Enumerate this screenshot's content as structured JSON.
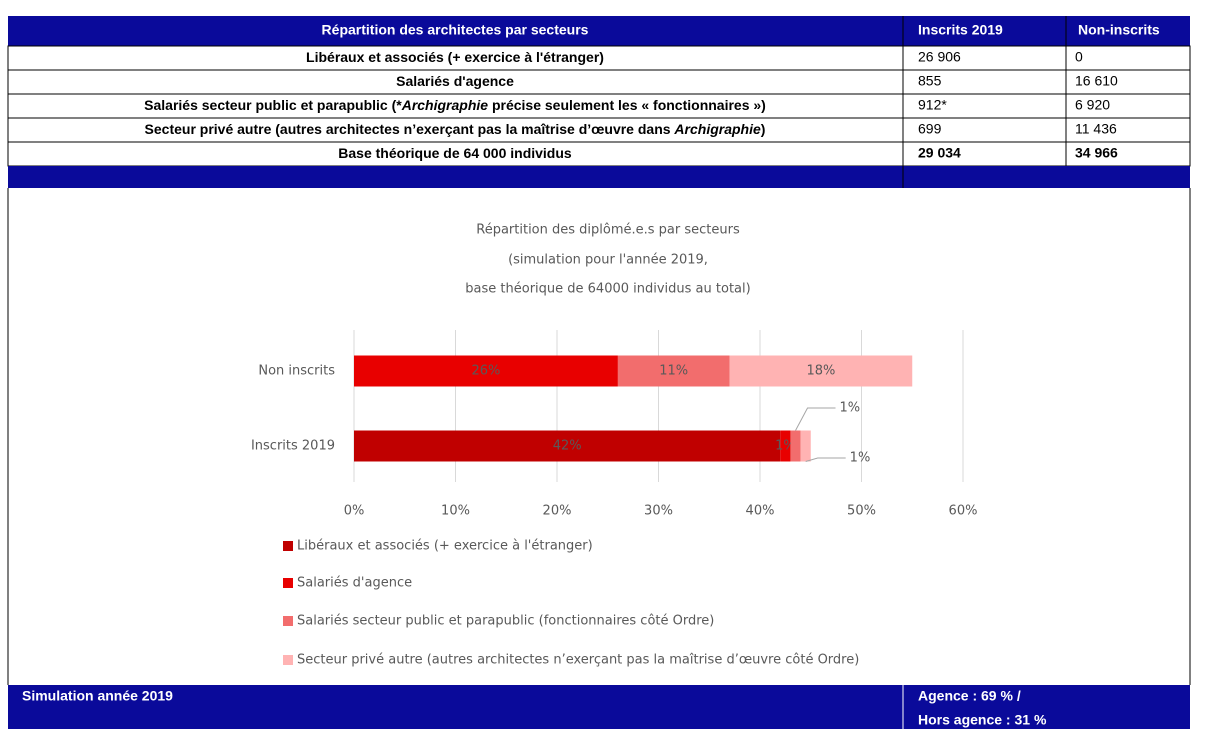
{
  "table": {
    "header": [
      "Répartition des architectes par secteurs",
      "Inscrits 2019",
      "Non-inscrits"
    ],
    "rows": [
      {
        "label": [
          "Libéraux et associés (+ exercice à l'étranger)"
        ],
        "cells": [
          "26 906",
          "0"
        ]
      },
      {
        "label": [
          "Salariés d'agence"
        ],
        "cells": [
          "855",
          "16 610"
        ]
      },
      {
        "label": [
          "Salariés secteur public et parapublic (*",
          "Archigraphie",
          " précise seulement les « fonctionnaires »)"
        ],
        "cells": [
          "912*",
          "6 920"
        ]
      },
      {
        "label": [
          "Secteur privé autre (autres architectes n’exerçant pas la maîtrise d’œuvre dans ",
          "Archigraphie",
          ")"
        ],
        "cells": [
          "699",
          "11 436"
        ]
      }
    ],
    "total": {
      "label": "Base théorique de 64 000 individus",
      "cells": [
        "29 034",
        "34 966"
      ]
    }
  },
  "chart_data": {
    "type": "stacked_barh",
    "title": [
      "Répartition des diplômé.e.s par secteurs",
      "(simulation pour l'année 2019,",
      "base théorique de 64000 individus au total)"
    ],
    "categories": [
      "Non inscrits",
      "Inscrits 2019"
    ],
    "series": [
      {
        "name": "Libéraux et associés (+ exercice à l'étranger)",
        "color": "#c00000",
        "values": [
          0,
          42
        ],
        "value_labels": [
          null,
          "42%"
        ]
      },
      {
        "name": "Salariés d'agence",
        "color": "#e80000",
        "values": [
          26,
          1
        ],
        "value_labels": [
          "26%",
          "1%"
        ]
      },
      {
        "name": "Salariés secteur public et parapublic (fonctionnaires côté Ordre)",
        "color": "#f26d6d",
        "values": [
          11,
          1
        ],
        "value_labels": [
          "11%",
          "1%"
        ]
      },
      {
        "name": "Secteur privé autre (autres architectes n’exerçant pas la maîtrise d’œuvre côté Ordre)",
        "color": "#ffb3b3",
        "values": [
          18,
          1
        ],
        "value_labels": [
          "18%",
          "1%"
        ]
      }
    ],
    "xlim": [
      0,
      60
    ],
    "xticks": [
      {
        "value": 0,
        "label": "0%"
      },
      {
        "value": 10,
        "label": "10%"
      },
      {
        "value": 20,
        "label": "20%"
      },
      {
        "value": 30,
        "label": "30%"
      },
      {
        "value": 40,
        "label": "40%"
      },
      {
        "value": 50,
        "label": "50%"
      },
      {
        "value": 60,
        "label": "60%"
      }
    ],
    "grid": true,
    "legend": "bottom"
  },
  "footer": {
    "left": "Simulation année 2019",
    "right": [
      "Agence : 69 % /",
      "Hors agence : 31 %"
    ]
  }
}
